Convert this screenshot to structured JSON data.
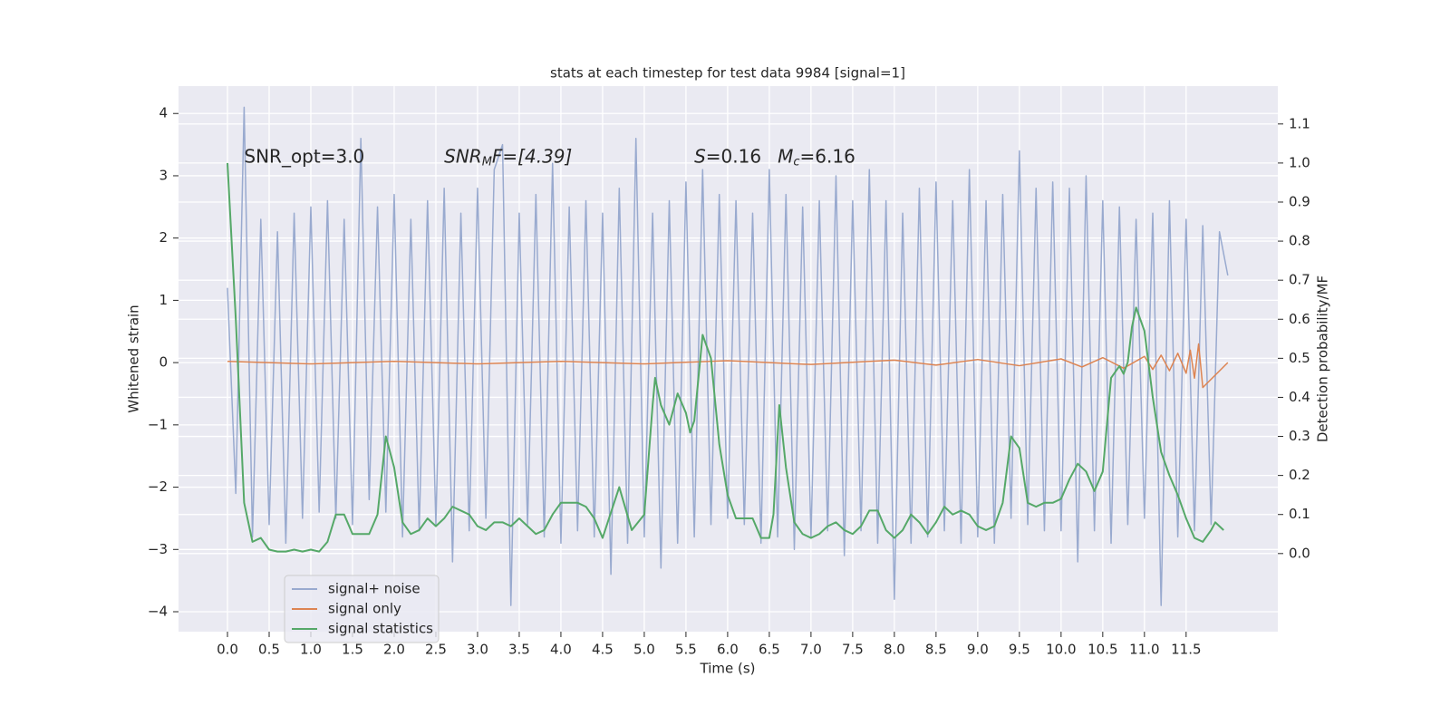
{
  "chart_data": {
    "type": "line",
    "title": "stats at each timestep for test data 9984 [signal=1]",
    "xlabel": "Time (s)",
    "ylabel": "Whitened strain",
    "y2label": "Detection probability/MF",
    "annotations": [
      {
        "x": 0.2,
        "y": 3.3,
        "parts": [
          "SNR_opt=3.0"
        ]
      },
      {
        "x": 2.6,
        "y": 3.3,
        "parts": [
          "SNR",
          "M",
          "F=[4.39]"
        ]
      },
      {
        "x": 5.6,
        "y": 3.3,
        "parts": [
          "S",
          "=0.16"
        ]
      },
      {
        "x": 6.6,
        "y": 3.3,
        "parts": [
          "M",
          "c",
          "=6.16"
        ]
      }
    ],
    "xlim": [
      -0.587,
      12.6
    ],
    "ylim": [
      -4.32,
      4.44
    ],
    "y2lim": [
      -0.2,
      1.197
    ],
    "xticks": [
      {
        "value": 0,
        "label": "0.0"
      },
      0.5,
      {
        "value": 1,
        "label": "1.0"
      },
      1.5,
      {
        "value": 2,
        "label": "2.0"
      },
      2.5,
      {
        "value": 3,
        "label": "3.0"
      },
      3.5,
      {
        "value": 4,
        "label": "4.0"
      },
      4.5,
      {
        "value": 5,
        "label": "5.0"
      },
      5.5,
      {
        "value": 6,
        "label": "6.0"
      },
      6.5,
      {
        "value": 7,
        "label": "7.0"
      },
      7.5,
      {
        "value": 8,
        "label": "8.0"
      },
      8.5,
      {
        "value": 9,
        "label": "9.0"
      },
      9.5,
      {
        "value": 10,
        "label": "10.0"
      },
      10.5,
      {
        "value": 11,
        "label": "11.0"
      },
      11.5
    ],
    "yticks": [
      {
        "value": -4,
        "label": "−4"
      },
      {
        "value": -3,
        "label": "−3"
      },
      {
        "value": -2,
        "label": "−2"
      },
      {
        "value": -1,
        "label": "−1"
      },
      0,
      1,
      2,
      3,
      4
    ],
    "y2ticks": [
      {
        "value": 0,
        "label": "0.0"
      },
      0.1,
      0.2,
      0.3,
      0.4,
      0.5,
      0.6,
      0.7,
      0.8,
      0.9,
      {
        "value": 1,
        "label": "1.0"
      },
      1.1
    ],
    "grid": true,
    "legend": "lower left",
    "series": [
      {
        "name": "signal+ noise",
        "color": "#99aacf",
        "x": [
          0,
          0.1,
          0.2,
          0.3,
          0.4,
          0.5,
          0.6,
          0.7,
          0.8,
          0.9,
          1,
          1.1,
          1.2,
          1.3,
          1.4,
          1.5,
          1.6,
          1.7,
          1.8,
          1.9,
          2,
          2.1,
          2.2,
          2.3,
          2.4,
          2.5,
          2.6,
          2.7,
          2.8,
          2.9,
          3,
          3.1,
          3.2,
          3.3,
          3.4,
          3.5,
          3.6,
          3.7,
          3.8,
          3.9,
          4,
          4.1,
          4.2,
          4.3,
          4.4,
          4.5,
          4.6,
          4.7,
          4.8,
          4.9,
          5,
          5.1,
          5.2,
          5.3,
          5.4,
          5.5,
          5.6,
          5.7,
          5.8,
          5.9,
          6,
          6.1,
          6.2,
          6.3,
          6.4,
          6.5,
          6.6,
          6.7,
          6.8,
          6.9,
          7,
          7.1,
          7.2,
          7.3,
          7.4,
          7.5,
          7.6,
          7.7,
          7.8,
          7.9,
          8,
          8.1,
          8.2,
          8.3,
          8.4,
          8.5,
          8.6,
          8.7,
          8.8,
          8.9,
          9,
          9.1,
          9.2,
          9.3,
          9.4,
          9.5,
          9.6,
          9.7,
          9.8,
          9.9,
          10,
          10.1,
          10.2,
          10.3,
          10.4,
          10.5,
          10.6,
          10.7,
          10.8,
          10.9,
          11,
          11.1,
          11.2,
          11.3,
          11.4,
          11.5,
          11.6,
          11.7,
          11.8,
          11.9,
          12
        ],
        "values": [
          1.2,
          -2.1,
          4.1,
          -2.8,
          2.3,
          -2.6,
          2.1,
          -2.9,
          2.4,
          -2.5,
          2.5,
          -2.4,
          2.6,
          -2.5,
          2.3,
          -2.6,
          3.6,
          -2.2,
          2.5,
          -2.4,
          2.7,
          -2.8,
          2.3,
          -2.7,
          2.6,
          -2.6,
          2.8,
          -3.2,
          2.4,
          -2.7,
          2.8,
          -2.5,
          3.1,
          3.5,
          -3.9,
          2.4,
          -2.6,
          2.7,
          -2.8,
          3.2,
          -2.9,
          2.5,
          -2.7,
          2.6,
          -2.8,
          2.4,
          -3.4,
          2.8,
          -2.9,
          3.6,
          -2.8,
          2.4,
          -3.3,
          2.6,
          -2.9,
          2.9,
          -2.8,
          3.1,
          -2.6,
          2.7,
          -2.5,
          2.6,
          -2.6,
          2.4,
          -2.9,
          3.1,
          -2.8,
          2.7,
          -3.0,
          2.5,
          -2.8,
          2.6,
          -2.7,
          3.0,
          -3.1,
          2.6,
          -2.7,
          3.1,
          -2.9,
          2.6,
          -3.8,
          2.4,
          -2.9,
          2.8,
          -2.8,
          2.9,
          -2.7,
          2.6,
          -2.9,
          3.1,
          -2.8,
          2.6,
          -2.9,
          2.7,
          -2.5,
          3.4,
          -2.6,
          2.8,
          -2.7,
          2.9,
          -2.7,
          2.8,
          -3.2,
          3.0,
          -2.7,
          2.6,
          -2.9,
          2.5,
          -2.6,
          2.3,
          -2.5,
          2.4,
          -3.9,
          2.6,
          -2.8,
          2.3,
          -2.7,
          2.2,
          -2.6,
          2.1,
          1.4
        ]
      },
      {
        "name": "signal only",
        "color": "#dd8452",
        "x": [
          0,
          1,
          2,
          3,
          4,
          5,
          6,
          7,
          8,
          8.5,
          9,
          9.5,
          10,
          10.25,
          10.5,
          10.75,
          11,
          11.1,
          11.2,
          11.3,
          11.4,
          11.5,
          11.55,
          11.6,
          11.65,
          11.7,
          12
        ],
        "values": [
          0.02,
          -0.02,
          0.02,
          -0.02,
          0.02,
          -0.02,
          0.03,
          -0.03,
          0.04,
          -0.04,
          0.05,
          -0.05,
          0.06,
          -0.07,
          0.08,
          -0.09,
          0.1,
          -0.11,
          0.12,
          -0.13,
          0.15,
          -0.17,
          0.2,
          -0.25,
          0.3,
          -0.4,
          0
        ]
      },
      {
        "name": "signal statistics",
        "color": "#55a868",
        "axis": "y2",
        "x": [
          0,
          0.1,
          0.2,
          0.3,
          0.4,
          0.5,
          0.6,
          0.7,
          0.8,
          0.9,
          1,
          1.1,
          1.2,
          1.3,
          1.4,
          1.5,
          1.6,
          1.7,
          1.8,
          1.9,
          2,
          2.1,
          2.2,
          2.3,
          2.4,
          2.5,
          2.6,
          2.7,
          2.8,
          2.9,
          3,
          3.1,
          3.2,
          3.3,
          3.4,
          3.5,
          3.6,
          3.7,
          3.8,
          3.9,
          4,
          4.1,
          4.2,
          4.3,
          4.4,
          4.5,
          4.7,
          4.85,
          5,
          5.1,
          5.13,
          5.2,
          5.3,
          5.4,
          5.5,
          5.55,
          5.6,
          5.7,
          5.8,
          5.9,
          6,
          6.1,
          6.2,
          6.3,
          6.4,
          6.5,
          6.55,
          6.6,
          6.62,
          6.7,
          6.8,
          6.9,
          7,
          7.1,
          7.2,
          7.3,
          7.4,
          7.5,
          7.6,
          7.7,
          7.8,
          7.9,
          8,
          8.1,
          8.2,
          8.3,
          8.4,
          8.5,
          8.6,
          8.7,
          8.8,
          8.9,
          9,
          9.1,
          9.2,
          9.3,
          9.4,
          9.5,
          9.6,
          9.7,
          9.8,
          9.9,
          10,
          10.1,
          10.2,
          10.3,
          10.4,
          10.5,
          10.6,
          10.7,
          10.75,
          10.8,
          10.85,
          10.9,
          11,
          11.1,
          11.2,
          11.3,
          11.4,
          11.5,
          11.6,
          11.7,
          11.8,
          11.85,
          11.95
        ],
        "values": [
          1.0,
          0.6,
          0.13,
          0.03,
          0.04,
          0.01,
          0.005,
          0.005,
          0.01,
          0.005,
          0.01,
          0.005,
          0.03,
          0.1,
          0.1,
          0.05,
          0.05,
          0.05,
          0.1,
          0.3,
          0.22,
          0.08,
          0.05,
          0.06,
          0.09,
          0.07,
          0.09,
          0.12,
          0.11,
          0.1,
          0.07,
          0.06,
          0.08,
          0.08,
          0.07,
          0.09,
          0.07,
          0.05,
          0.06,
          0.1,
          0.13,
          0.13,
          0.13,
          0.12,
          0.09,
          0.04,
          0.17,
          0.06,
          0.1,
          0.38,
          0.45,
          0.38,
          0.33,
          0.41,
          0.36,
          0.31,
          0.34,
          0.56,
          0.5,
          0.28,
          0.15,
          0.09,
          0.09,
          0.09,
          0.04,
          0.04,
          0.1,
          0.3,
          0.38,
          0.22,
          0.08,
          0.05,
          0.04,
          0.05,
          0.07,
          0.08,
          0.06,
          0.05,
          0.07,
          0.11,
          0.11,
          0.06,
          0.04,
          0.06,
          0.1,
          0.08,
          0.05,
          0.08,
          0.12,
          0.1,
          0.11,
          0.1,
          0.07,
          0.06,
          0.07,
          0.13,
          0.3,
          0.27,
          0.13,
          0.12,
          0.13,
          0.13,
          0.14,
          0.19,
          0.23,
          0.21,
          0.16,
          0.21,
          0.45,
          0.48,
          0.46,
          0.49,
          0.58,
          0.63,
          0.57,
          0.4,
          0.26,
          0.2,
          0.15,
          0.09,
          0.04,
          0.03,
          0.06,
          0.08,
          0.06
        ]
      }
    ]
  }
}
